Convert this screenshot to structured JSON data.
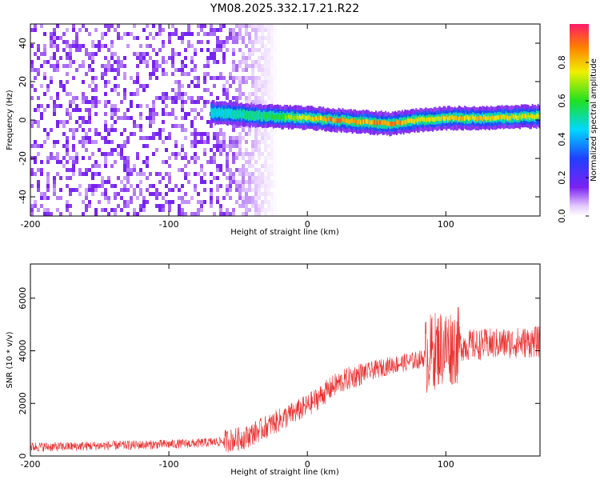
{
  "title": "YM08.2025.332.17.21.R22",
  "colors": {
    "snr_line": "#e8312f",
    "spectrogram_noise": "#7a22f0",
    "spectrogram_peak": "#ff2a2a",
    "axis": "#000000"
  },
  "chart_data": [
    {
      "type": "heatmap",
      "xlabel": "Height of straight line (km)",
      "ylabel": "Frequency (Hz)",
      "xlim": [
        -200,
        168
      ],
      "ylim": [
        -50,
        50
      ],
      "xticks": [
        -200,
        -100,
        0,
        100
      ],
      "yticks": [
        -40,
        -20,
        0,
        20,
        40
      ],
      "colorbar": {
        "label": "Normalized spectral amplitude",
        "range": [
          0,
          1
        ],
        "ticks": [
          "0.0",
          "0.2",
          "0.4",
          "0.6",
          "0.8"
        ],
        "colormap": "rainbow"
      },
      "noise_region_x": [
        -200,
        -40
      ],
      "signal_band": [
        {
          "x": -70,
          "f": 4,
          "amp": 0.5
        },
        {
          "x": -50,
          "f": 3,
          "amp": 0.55
        },
        {
          "x": -30,
          "f": 2,
          "amp": 0.6
        },
        {
          "x": 0,
          "f": 1,
          "amp": 0.8
        },
        {
          "x": 20,
          "f": 0,
          "amp": 0.95
        },
        {
          "x": 40,
          "f": -1,
          "amp": 0.9
        },
        {
          "x": 60,
          "f": -2,
          "amp": 0.95
        },
        {
          "x": 80,
          "f": 0,
          "amp": 0.8
        },
        {
          "x": 100,
          "f": 1,
          "amp": 0.85
        },
        {
          "x": 130,
          "f": 1,
          "amp": 0.85
        },
        {
          "x": 168,
          "f": 2,
          "amp": 0.8
        }
      ]
    },
    {
      "type": "line",
      "xlabel": "Height of straight line (km)",
      "ylabel": "SNR (10 * v/v)",
      "xlim": [
        -200,
        168
      ],
      "ylim": [
        0,
        7300
      ],
      "xticks": [
        -200,
        -100,
        0,
        100
      ],
      "yticks": [
        0,
        2000,
        4000,
        6000
      ],
      "series": [
        {
          "points": [
            [
              -200,
              350
            ],
            [
              -180,
              350
            ],
            [
              -160,
              380
            ],
            [
              -140,
              400
            ],
            [
              -120,
              420
            ],
            [
              -100,
              450
            ],
            [
              -80,
              480
            ],
            [
              -60,
              560
            ],
            [
              -45,
              700
            ],
            [
              -30,
              1100
            ],
            [
              -15,
              1500
            ],
            [
              0,
              1900
            ],
            [
              10,
              2300
            ],
            [
              20,
              2700
            ],
            [
              30,
              2950
            ],
            [
              40,
              3150
            ],
            [
              50,
              3300
            ],
            [
              60,
              3450
            ],
            [
              70,
              3550
            ],
            [
              80,
              3650
            ],
            [
              85,
              3750
            ],
            [
              88,
              3900
            ],
            [
              95,
              4100
            ],
            [
              110,
              4200
            ],
            [
              130,
              4250
            ],
            [
              150,
              4300
            ],
            [
              168,
              4350
            ]
          ]
        }
      ]
    }
  ]
}
